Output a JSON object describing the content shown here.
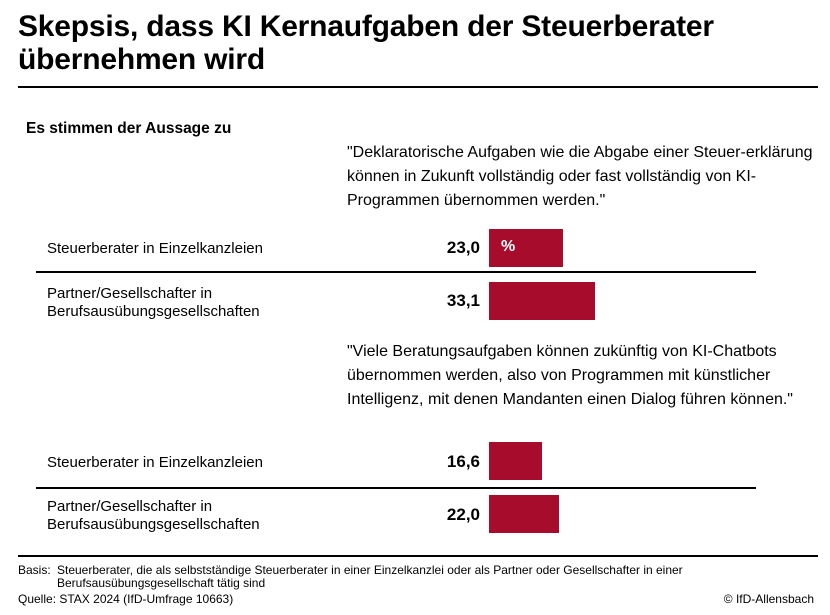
{
  "title": "Skepsis, dass KI Kernaufgaben der Steuerberater übernehmen wird",
  "subtitle": "Es stimmen der Aussage zu",
  "unit": "%",
  "colors": {
    "bar": "#a80c2c"
  },
  "statements": [
    "\"Deklaratorische Aufgaben wie die Abgabe einer Steuer-erklärung können in Zukunft vollständig oder fast vollständig von KI-Programmen übernommen werden.\"",
    "\"Viele Beratungsaufgaben können zukünftig von KI-Chatbots übernommen werden, also von Programmen mit künstlicher Intelligenz, mit denen Mandanten einen Dialog führen können.\""
  ],
  "chart_data": {
    "type": "bar",
    "orientation": "horizontal",
    "groups": [
      {
        "statement_index": 0,
        "categories": [
          "Steuerberater in Einzelkanzleien",
          "Partner/Gesellschafter in Berufsausübungsgesellschaften"
        ],
        "values": [
          23.0,
          33.1
        ],
        "value_labels": [
          "23,0",
          "33,1"
        ]
      },
      {
        "statement_index": 1,
        "categories": [
          "Steuerberater in Einzelkanzleien",
          "Partner/Gesellschafter in Berufsausübungsgesellschaften"
        ],
        "values": [
          16.6,
          22.0
        ],
        "value_labels": [
          "16,6",
          "22,0"
        ]
      }
    ],
    "xlim": [
      0,
      100
    ]
  },
  "footer": {
    "basis_label": "Basis:",
    "basis_text": "Steuerberater, die als selbstständige Steuerberater in einer Einzelkanzlei oder als Partner oder Gesellschafter in einer Berufsausübungsgesellschaft tätig sind",
    "source": "Quelle: STAX 2024 (IfD-Umfrage 10663)",
    "copyright": "© IfD-Allensbach"
  }
}
